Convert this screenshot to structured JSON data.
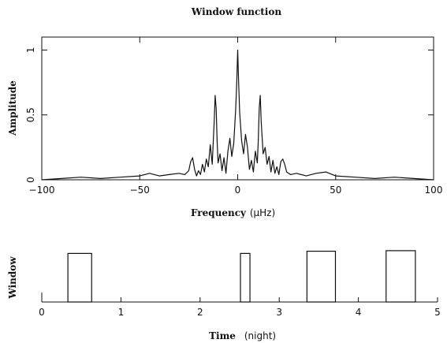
{
  "chart_data": [
    {
      "type": "line",
      "title": "Window function",
      "xlabel": "Frequency",
      "xunit": "(μHz)",
      "ylabel": "Amplitude",
      "xlim": [
        -100,
        100
      ],
      "ylim": [
        0,
        1.1
      ],
      "x_ticks": [
        -100,
        -50,
        0,
        50,
        100
      ],
      "x_tick_labels": [
        "−100",
        "−50",
        "0",
        "50",
        "100"
      ],
      "y_ticks": [
        0,
        0.5,
        1
      ],
      "y_tick_labels": [
        "0",
        "0.5",
        "1"
      ],
      "grid": false,
      "series": [
        {
          "x": [
            -100,
            -90,
            -80,
            -70,
            -60,
            -50,
            -45,
            -40,
            -35,
            -30,
            -27,
            -25,
            -24,
            -23,
            -22,
            -21,
            -20,
            -19,
            -18,
            -17,
            -16,
            -15,
            -14,
            -13,
            -12,
            -11.5,
            -11,
            -10.5,
            -10,
            -9,
            -8,
            -7,
            -6,
            -5,
            -4,
            -3,
            -2,
            -1,
            -0.5,
            0,
            0.5,
            1,
            2,
            3,
            4,
            5,
            6,
            7,
            8,
            9,
            10,
            10.5,
            11,
            11.5,
            12,
            13,
            14,
            15,
            16,
            17,
            18,
            19,
            20,
            21,
            22,
            23,
            24,
            25,
            27,
            30,
            35,
            40,
            45,
            50,
            60,
            70,
            80,
            90,
            100
          ],
          "y": [
            0.0,
            0.01,
            0.02,
            0.01,
            0.02,
            0.03,
            0.05,
            0.03,
            0.04,
            0.05,
            0.04,
            0.07,
            0.14,
            0.17,
            0.08,
            0.03,
            0.07,
            0.04,
            0.12,
            0.06,
            0.16,
            0.1,
            0.27,
            0.12,
            0.45,
            0.65,
            0.55,
            0.3,
            0.13,
            0.2,
            0.07,
            0.17,
            0.05,
            0.22,
            0.32,
            0.18,
            0.28,
            0.55,
            0.75,
            1.0,
            0.75,
            0.52,
            0.3,
            0.2,
            0.35,
            0.25,
            0.08,
            0.15,
            0.06,
            0.22,
            0.13,
            0.3,
            0.55,
            0.65,
            0.45,
            0.2,
            0.25,
            0.12,
            0.18,
            0.06,
            0.15,
            0.05,
            0.1,
            0.04,
            0.14,
            0.16,
            0.12,
            0.06,
            0.04,
            0.05,
            0.03,
            0.05,
            0.06,
            0.03,
            0.02,
            0.01,
            0.02,
            0.01,
            0.0
          ]
        }
      ]
    },
    {
      "type": "line",
      "xlabel": "Time",
      "xunit": "(night)",
      "ylabel": "Window",
      "xlim": [
        0,
        5
      ],
      "x_ticks": [
        0,
        1,
        2,
        3,
        4,
        5
      ],
      "x_tick_labels": [
        "0",
        "1",
        "2",
        "3",
        "4",
        "5"
      ],
      "grid": false,
      "windows": [
        {
          "start": 0.33,
          "end": 0.63,
          "level": 0.88
        },
        {
          "start": 2.51,
          "end": 2.63,
          "level": 0.88
        },
        {
          "start": 3.35,
          "end": 3.71,
          "level": 0.92
        },
        {
          "start": 4.35,
          "end": 4.72,
          "level": 0.93
        }
      ]
    }
  ]
}
